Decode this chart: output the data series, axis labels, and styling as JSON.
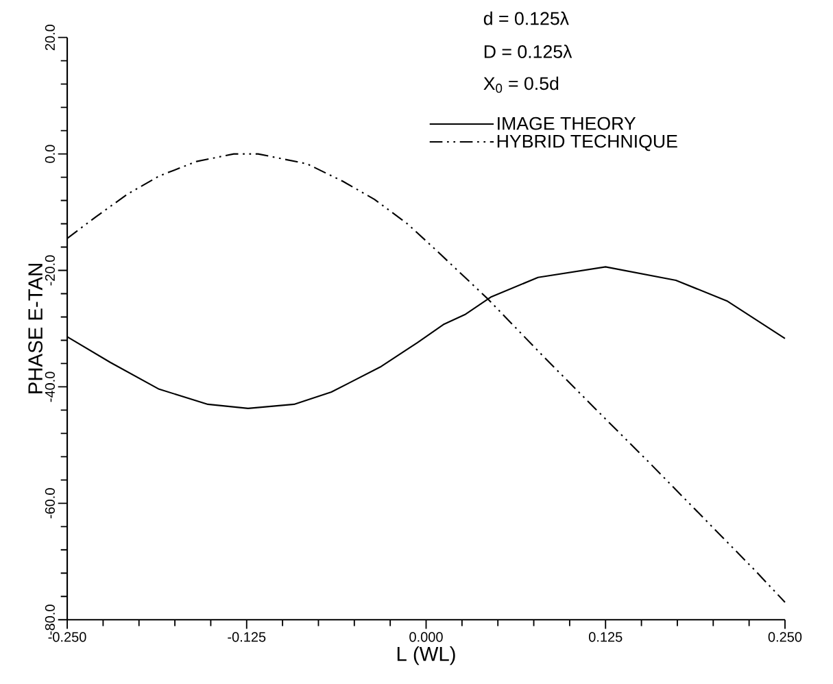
{
  "chart_data": {
    "type": "line",
    "xlabel": "L (WL)",
    "ylabel": "PHASE E-TAN",
    "xlim": [
      -0.25,
      0.25
    ],
    "ylim": [
      -80,
      20
    ],
    "xticks": [
      {
        "value": -0.25,
        "label": "-0.250"
      },
      {
        "value": -0.125,
        "label": "-0.125"
      },
      {
        "value": 0,
        "label": "0.000"
      },
      {
        "value": 0.125,
        "label": "0.125"
      },
      {
        "value": 0.25,
        "label": "0.250"
      }
    ],
    "yticks": [
      {
        "value": -80,
        "label": "-80.0"
      },
      {
        "value": -60,
        "label": "-60.0"
      },
      {
        "value": -40,
        "label": "-40.0"
      },
      {
        "value": -20,
        "label": "-20.0"
      },
      {
        "value": 0,
        "label": "0.0"
      },
      {
        "value": 20,
        "label": "20.0"
      }
    ],
    "grid": false,
    "legend": "top right",
    "marker": "none",
    "annotations": [
      "d = 0.125λ",
      "D = 0.125λ",
      "X$_{0}$ = 0.5d"
    ],
    "series": [
      {
        "name": "IMAGE THEORY",
        "color": "#000000",
        "line_style": "solid",
        "x": [
          -0.25,
          -0.22,
          -0.186,
          -0.152,
          -0.124,
          -0.092,
          -0.066,
          -0.032,
          -0.006,
          0.012,
          0.027,
          0.045,
          0.078,
          0.125,
          0.174,
          0.21,
          0.25
        ],
        "values": [
          -31.4,
          -35.8,
          -40.4,
          -43.0,
          -43.7,
          -43.0,
          -40.9,
          -36.6,
          -32.4,
          -29.3,
          -27.6,
          -24.6,
          -21.2,
          -19.4,
          -21.7,
          -25.3,
          -31.7
        ]
      },
      {
        "name": "HYBRID TECHNIQUE",
        "color": "#000000",
        "line_style": "dashdot",
        "x": [
          -0.25,
          -0.23,
          -0.208,
          -0.186,
          -0.16,
          -0.134,
          -0.117,
          -0.083,
          -0.058,
          -0.036,
          -0.013,
          0.006,
          0.043,
          0.081,
          0.118,
          0.155,
          0.192,
          0.229,
          0.25
        ],
        "values": [
          -14.5,
          -10.8,
          -6.9,
          -3.8,
          -1.3,
          0.0,
          0.0,
          -1.7,
          -4.7,
          -7.8,
          -12.0,
          -16.3,
          -24.9,
          -34.6,
          -43.8,
          -52.9,
          -62.2,
          -71.5,
          -77.0
        ]
      }
    ]
  }
}
